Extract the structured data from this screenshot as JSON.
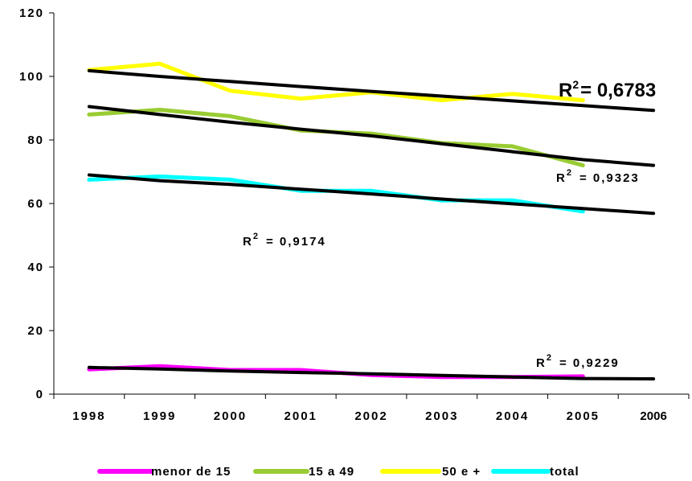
{
  "chart_data": {
    "type": "line",
    "x": [
      "1998",
      "1999",
      "2000",
      "2001",
      "2002",
      "2003",
      "2004",
      "2005",
      "2006"
    ],
    "ylim": [
      0,
      120
    ],
    "yticks": [
      "0",
      "20",
      "40",
      "60",
      "80",
      "100",
      "120"
    ],
    "grid": false,
    "legend_position": "bottom",
    "series": [
      {
        "name": "menor de 15",
        "color": "#ff00ff",
        "values": [
          7.8,
          8.8,
          7.6,
          7.6,
          6.0,
          5.4,
          5.4,
          5.6,
          null
        ]
      },
      {
        "name": "15 a 49",
        "color": "#99cc33",
        "values": [
          88.0,
          89.5,
          87.5,
          83.0,
          82.0,
          79.0,
          78.0,
          72.0,
          null
        ]
      },
      {
        "name": "50 e +",
        "color": "#ffff00",
        "values": [
          102.0,
          104.0,
          95.5,
          93.0,
          95.0,
          92.5,
          94.5,
          92.5,
          null
        ]
      },
      {
        "name": "total",
        "color": "#00ffff",
        "values": [
          67.5,
          68.5,
          67.5,
          64.0,
          64.0,
          61.0,
          61.0,
          57.5,
          null
        ]
      }
    ],
    "trendlines": [
      {
        "values": [
          8.4,
          7.9,
          7.3,
          6.8,
          6.4,
          5.9,
          5.4,
          4.9,
          4.8
        ],
        "r2_prefix": "R",
        "r2_sup": "2",
        "r2_value": "= 0,9229"
      },
      {
        "values": [
          90.5,
          88.0,
          85.6,
          83.4,
          81.3,
          78.8,
          76.3,
          73.8,
          72.0
        ],
        "r2_prefix": "R",
        "r2_sup": "2",
        "r2_value": "= 0,9323"
      },
      {
        "values": [
          101.8,
          100.0,
          98.4,
          96.8,
          95.3,
          93.8,
          92.3,
          90.8,
          89.3
        ],
        "r2_prefix": "R",
        "r2_sup": "2",
        "r2_value": "= 0,6783"
      },
      {
        "values": [
          69.0,
          67.2,
          66.0,
          64.5,
          63.0,
          61.4,
          59.9,
          58.4,
          56.9
        ],
        "r2_prefix": "R",
        "r2_sup": "2",
        "r2_value": "= 0,9174"
      }
    ]
  }
}
